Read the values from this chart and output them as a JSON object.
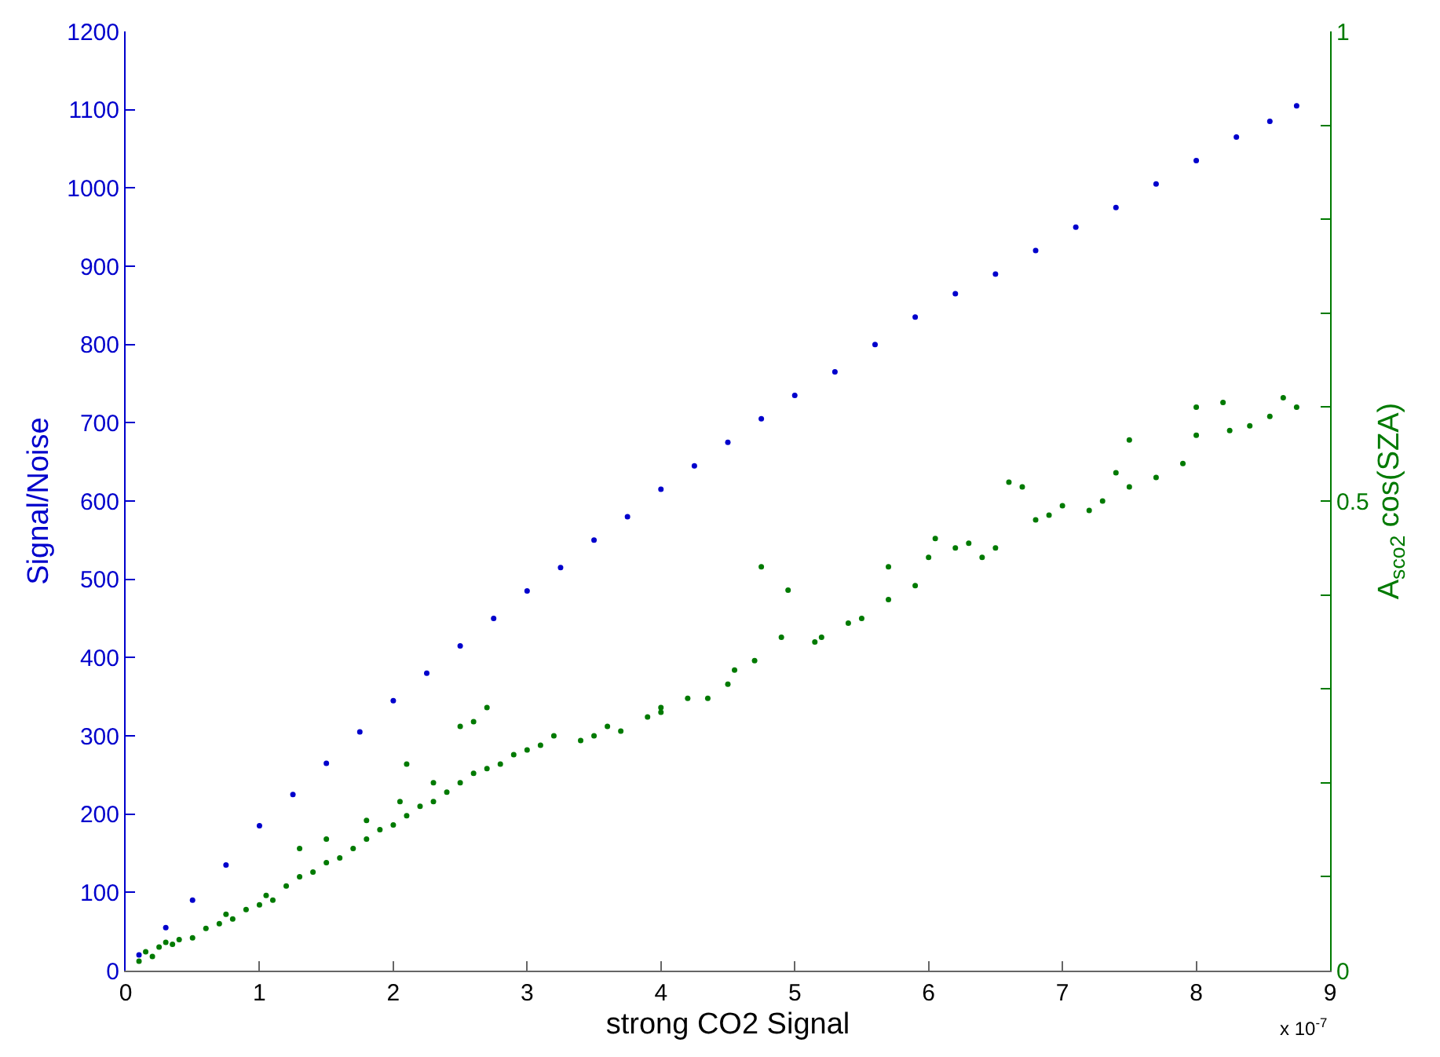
{
  "chart_data": {
    "type": "scatter",
    "xlabel": "strong CO2 Signal",
    "ylabel": "Signal/Noise",
    "y2label": "A$_{sco2}$ cos(SZA)",
    "annotations": [
      "x 10$^{-7}$"
    ],
    "xlim": [
      0,
      9
    ],
    "xticks": [
      0,
      1,
      2,
      3,
      4,
      5,
      6,
      7,
      8,
      9
    ],
    "ylim": [
      0,
      1200
    ],
    "yticks": [
      0,
      100,
      200,
      300,
      400,
      500,
      600,
      700,
      800,
      900,
      1000,
      1100,
      1200
    ],
    "y2lim": [
      0,
      1
    ],
    "y2ticks": [
      0,
      {
        "value": 0.1,
        "label": null
      },
      {
        "value": 0.2,
        "label": null
      },
      {
        "value": 0.3,
        "label": null
      },
      {
        "value": 0.4,
        "label": null
      },
      0.5,
      {
        "value": 0.6,
        "label": null
      },
      {
        "value": 0.7,
        "label": null
      },
      {
        "value": 0.8,
        "label": null
      },
      {
        "value": 0.9,
        "label": null
      },
      1
    ],
    "marker": "circle",
    "series": [
      {
        "color": "#0000cc",
        "x": [
          0.1,
          0.3,
          0.5,
          0.75,
          1,
          1.25,
          1.5,
          1.75,
          2,
          2.25,
          2.5,
          2.75,
          3,
          3.25,
          3.5,
          3.75,
          4,
          4.25,
          4.5,
          4.75,
          5,
          5.3,
          5.6,
          5.9,
          6.2,
          6.5,
          6.8,
          7.1,
          7.4,
          7.7,
          8.0,
          8.3,
          8.55,
          8.75
        ],
        "values": [
          20,
          55,
          90,
          135,
          185,
          225,
          265,
          305,
          345,
          380,
          415,
          450,
          485,
          515,
          550,
          580,
          615,
          645,
          675,
          705,
          735,
          765,
          800,
          835,
          865,
          890,
          920,
          950,
          975,
          1005,
          1035,
          1065,
          1085,
          1105
        ]
      },
      {
        "color": "#007a00",
        "axis": "y2",
        "x": [
          0.1,
          0.15,
          0.2,
          0.25,
          0.3,
          0.35,
          0.4,
          0.5,
          0.6,
          0.7,
          0.75,
          0.8,
          0.9,
          1.0,
          1.05,
          1.1,
          1.2,
          1.3,
          1.3,
          1.4,
          1.5,
          1.5,
          1.6,
          1.7,
          1.8,
          1.8,
          1.9,
          2.0,
          2.05,
          2.1,
          2.1,
          2.2,
          2.3,
          2.3,
          2.4,
          2.5,
          2.5,
          2.6,
          2.6,
          2.7,
          2.7,
          2.8,
          2.9,
          3.0,
          3.1,
          3.2,
          3.4,
          3.5,
          3.6,
          3.7,
          3.9,
          4.0,
          4.0,
          4.2,
          4.35,
          4.5,
          4.55,
          4.7,
          4.75,
          4.9,
          4.95,
          5.15,
          5.2,
          5.4,
          5.5,
          5.7,
          5.7,
          5.9,
          6.0,
          6.05,
          6.2,
          6.3,
          6.4,
          6.5,
          6.6,
          6.7,
          6.8,
          6.9,
          7.0,
          7.2,
          7.3,
          7.4,
          7.5,
          7.5,
          7.7,
          7.9,
          8.0,
          8.0,
          8.2,
          8.25,
          8.4,
          8.55,
          8.65,
          8.75
        ],
        "values": [
          0.01,
          0.02,
          0.015,
          0.025,
          0.03,
          0.028,
          0.033,
          0.035,
          0.045,
          0.05,
          0.06,
          0.055,
          0.065,
          0.07,
          0.08,
          0.075,
          0.09,
          0.1,
          0.13,
          0.105,
          0.115,
          0.14,
          0.12,
          0.13,
          0.14,
          0.16,
          0.15,
          0.155,
          0.18,
          0.165,
          0.22,
          0.175,
          0.18,
          0.2,
          0.19,
          0.2,
          0.26,
          0.21,
          0.265,
          0.215,
          0.28,
          0.22,
          0.23,
          0.235,
          0.24,
          0.25,
          0.245,
          0.25,
          0.26,
          0.255,
          0.27,
          0.275,
          0.28,
          0.29,
          0.29,
          0.305,
          0.32,
          0.33,
          0.43,
          0.355,
          0.405,
          0.35,
          0.355,
          0.37,
          0.375,
          0.395,
          0.43,
          0.41,
          0.44,
          0.46,
          0.45,
          0.455,
          0.44,
          0.45,
          0.52,
          0.515,
          0.48,
          0.485,
          0.495,
          0.49,
          0.5,
          0.53,
          0.515,
          0.565,
          0.525,
          0.54,
          0.6,
          0.57,
          0.605,
          0.575,
          0.58,
          0.59,
          0.61,
          0.6
        ]
      }
    ]
  }
}
